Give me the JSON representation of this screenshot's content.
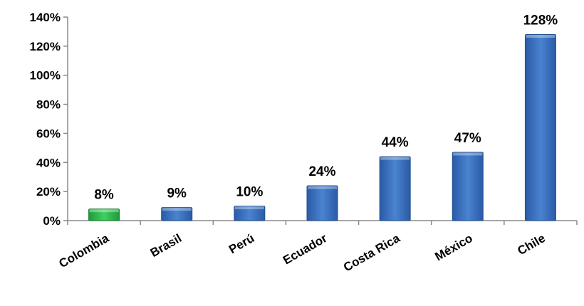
{
  "chart_data": {
    "type": "bar",
    "categories": [
      "Colombia",
      "Brasil",
      "Perú",
      "Ecuador",
      "Costa Rica",
      "México",
      "Chile"
    ],
    "values": [
      8,
      9,
      10,
      24,
      44,
      47,
      128
    ],
    "data_labels": [
      "8%",
      "9%",
      "10%",
      "24%",
      "44%",
      "47%",
      "128%"
    ],
    "yticks": [
      0,
      20,
      40,
      60,
      80,
      100,
      120,
      140
    ],
    "ytick_labels": [
      "0%",
      "20%",
      "40%",
      "60%",
      "80%",
      "100%",
      "120%",
      "140%"
    ],
    "ylim": [
      0,
      140
    ],
    "grid": false,
    "legend": "none",
    "bar_colors": [
      "#2db84a",
      "#3a6fbf",
      "#3a6fbf",
      "#3a6fbf",
      "#3a6fbf",
      "#3a6fbf",
      "#3a6fbf"
    ],
    "highlight_color": "#2db84a",
    "default_color": "#3a6fbf"
  }
}
